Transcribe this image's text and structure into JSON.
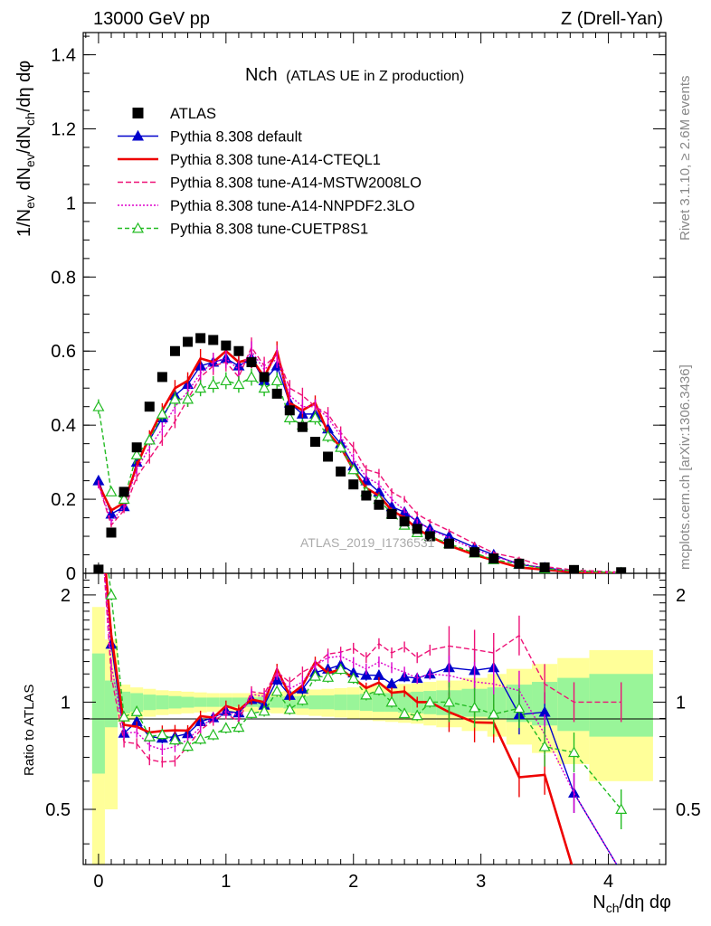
{
  "header": {
    "left": "13000 GeV pp",
    "right": "Z (Drell-Yan)",
    "side_top": "Rivet 3.1.10, ≥ 2.6M events",
    "side_bottom": "mcplots.cern.ch [arXiv:1306.3436]"
  },
  "chart_data": {
    "type": "scatter",
    "title_main": "Nch",
    "title_sub": "(ATLAS UE in Z production)",
    "watermark": "ATLAS_2019_I1736531",
    "xlabel": "N",
    "xlabel_sub": "ch",
    "xlabel_tail": "/dη dφ",
    "ylabel_top": "1/N",
    "ylabel_top_sub1": "ev",
    "ylabel_top_mid": " dN",
    "ylabel_top_sub2": "ev",
    "ylabel_top_div": "/dN",
    "ylabel_top_sub3": "ch",
    "ylabel_top_tail": "/dη dφ",
    "ylabel_bottom": "Ratio to ATLAS",
    "xlim": [
      -0.12,
      4.45
    ],
    "main_ylim": [
      0,
      1.46
    ],
    "ratio_ylim": [
      0.35,
      2.3
    ],
    "x_ticks": [
      "0",
      "1",
      "2",
      "3",
      "4"
    ],
    "main_y_ticks": [
      "0",
      "0.2",
      "0.4",
      "0.6",
      "0.8",
      "1",
      "1.2",
      "1.4"
    ],
    "ratio_y_ticks": [
      "0.5",
      "1",
      "2"
    ],
    "legend": [
      {
        "label": "ATLAS",
        "color": "#000000"
      },
      {
        "label": "Pythia 8.308 default",
        "color": "#0000cc"
      },
      {
        "label": "Pythia 8.308 tune-A14-CTEQL1",
        "color": "#ee0000"
      },
      {
        "label": "Pythia 8.308 tune-A14-MSTW2008LO",
        "color": "#ee1177"
      },
      {
        "label": "Pythia 8.308 tune-A14-NNPDF2.3LO",
        "color": "#dd00cc"
      },
      {
        "label": "Pythia 8.308 tune-CUETP8S1",
        "color": "#22bb22"
      }
    ],
    "x": [
      0.0,
      0.1,
      0.2,
      0.3,
      0.4,
      0.5,
      0.6,
      0.7,
      0.8,
      0.9,
      1.0,
      1.1,
      1.2,
      1.3,
      1.4,
      1.5,
      1.6,
      1.7,
      1.8,
      1.9,
      2.0,
      2.1,
      2.2,
      2.3,
      2.4,
      2.5,
      2.6,
      2.75,
      2.95,
      3.1,
      3.3,
      3.5,
      3.73,
      4.1
    ],
    "atlas": [
      0.01,
      0.11,
      0.22,
      0.34,
      0.45,
      0.53,
      0.6,
      0.625,
      0.635,
      0.63,
      0.615,
      0.6,
      0.57,
      0.53,
      0.485,
      0.44,
      0.395,
      0.355,
      0.315,
      0.275,
      0.24,
      0.21,
      0.185,
      0.16,
      0.14,
      0.12,
      0.1,
      0.08,
      0.057,
      0.04,
      0.026,
      0.016,
      0.009,
      0.003
    ],
    "series": [
      {
        "name": "Pythia 8.308 default",
        "color": "#0000cc",
        "dash": "",
        "marker": "tri-filled",
        "values": [
          0.25,
          0.16,
          0.18,
          0.3,
          0.36,
          0.42,
          0.48,
          0.51,
          0.56,
          0.57,
          0.58,
          0.56,
          0.58,
          0.52,
          0.56,
          0.46,
          0.43,
          0.43,
          0.39,
          0.35,
          0.29,
          0.25,
          0.22,
          0.18,
          0.165,
          0.14,
          0.12,
          0.1,
          0.07,
          0.05,
          0.024,
          0.015,
          0.005,
          0.001
        ]
      },
      {
        "name": "Pythia 8.308 tune-A14-CTEQL1",
        "color": "#ee0000",
        "dash": "",
        "marker": "none",
        "values": [
          0.24,
          0.17,
          0.19,
          0.29,
          0.37,
          0.44,
          0.5,
          0.52,
          0.58,
          0.57,
          0.6,
          0.57,
          0.58,
          0.53,
          0.6,
          0.46,
          0.44,
          0.46,
          0.38,
          0.34,
          0.28,
          0.23,
          0.21,
          0.17,
          0.15,
          0.12,
          0.1,
          0.075,
          0.05,
          0.035,
          0.016,
          0.01,
          0.003,
          0.0005
        ]
      },
      {
        "name": "Pythia 8.308 tune-A14-MSTW2008LO",
        "color": "#ee1177",
        "dash": "6,3",
        "marker": "none",
        "values": [
          0.24,
          0.13,
          0.17,
          0.26,
          0.31,
          0.36,
          0.41,
          0.47,
          0.53,
          0.56,
          0.57,
          0.53,
          0.61,
          0.56,
          0.59,
          0.5,
          0.48,
          0.45,
          0.43,
          0.38,
          0.34,
          0.28,
          0.27,
          0.22,
          0.2,
          0.16,
          0.14,
          0.115,
          0.08,
          0.055,
          0.04,
          0.018,
          0.009,
          0.003
        ]
      },
      {
        "name": "Pythia 8.308 tune-A14-NNPDF2.3LO",
        "color": "#dd00cc",
        "dash": "2,2",
        "marker": "none",
        "values": [
          0.24,
          0.14,
          0.18,
          0.28,
          0.34,
          0.39,
          0.45,
          0.49,
          0.54,
          0.57,
          0.58,
          0.55,
          0.6,
          0.55,
          0.58,
          0.48,
          0.45,
          0.45,
          0.42,
          0.37,
          0.31,
          0.26,
          0.24,
          0.2,
          0.17,
          0.14,
          0.12,
          0.095,
          0.065,
          0.045,
          0.028,
          0.013,
          0.005,
          0.001
        ]
      },
      {
        "name": "Pythia 8.308 tune-CUETP8S1",
        "color": "#22bb22",
        "dash": "5,3",
        "marker": "tri-open",
        "values": [
          0.45,
          0.22,
          0.2,
          0.32,
          0.36,
          0.43,
          0.47,
          0.47,
          0.5,
          0.51,
          0.52,
          0.51,
          0.53,
          0.5,
          0.52,
          0.42,
          0.4,
          0.42,
          0.37,
          0.34,
          0.28,
          0.22,
          0.2,
          0.16,
          0.13,
          0.11,
          0.1,
          0.08,
          0.055,
          0.037,
          0.025,
          0.012,
          0.0065,
          0.0015
        ]
      }
    ],
    "ratio_band_edges": [
      -0.05,
      0.05,
      0.15,
      0.25,
      0.35,
      0.45,
      0.55,
      0.65,
      0.75,
      0.85,
      0.95,
      1.05,
      1.15,
      1.25,
      1.35,
      1.45,
      1.55,
      1.65,
      1.75,
      1.85,
      1.95,
      2.05,
      2.15,
      2.25,
      2.35,
      2.45,
      2.55,
      2.65,
      2.85,
      3.05,
      3.2,
      3.4,
      3.6,
      3.85,
      4.35
    ],
    "ratio_band_green": [
      0.37,
      0.15,
      0.07,
      0.06,
      0.05,
      0.045,
      0.04,
      0.035,
      0.03,
      0.03,
      0.03,
      0.03,
      0.03,
      0.035,
      0.035,
      0.04,
      0.04,
      0.045,
      0.045,
      0.05,
      0.05,
      0.055,
      0.06,
      0.06,
      0.065,
      0.07,
      0.075,
      0.08,
      0.09,
      0.1,
      0.12,
      0.14,
      0.17,
      0.2
    ],
    "ratio_band_yellow": [
      0.85,
      0.5,
      0.12,
      0.1,
      0.09,
      0.08,
      0.075,
      0.07,
      0.065,
      0.06,
      0.06,
      0.06,
      0.06,
      0.065,
      0.07,
      0.075,
      0.08,
      0.085,
      0.09,
      0.095,
      0.1,
      0.11,
      0.115,
      0.12,
      0.125,
      0.13,
      0.14,
      0.15,
      0.17,
      0.2,
      0.24,
      0.28,
      0.33,
      0.4
    ]
  }
}
